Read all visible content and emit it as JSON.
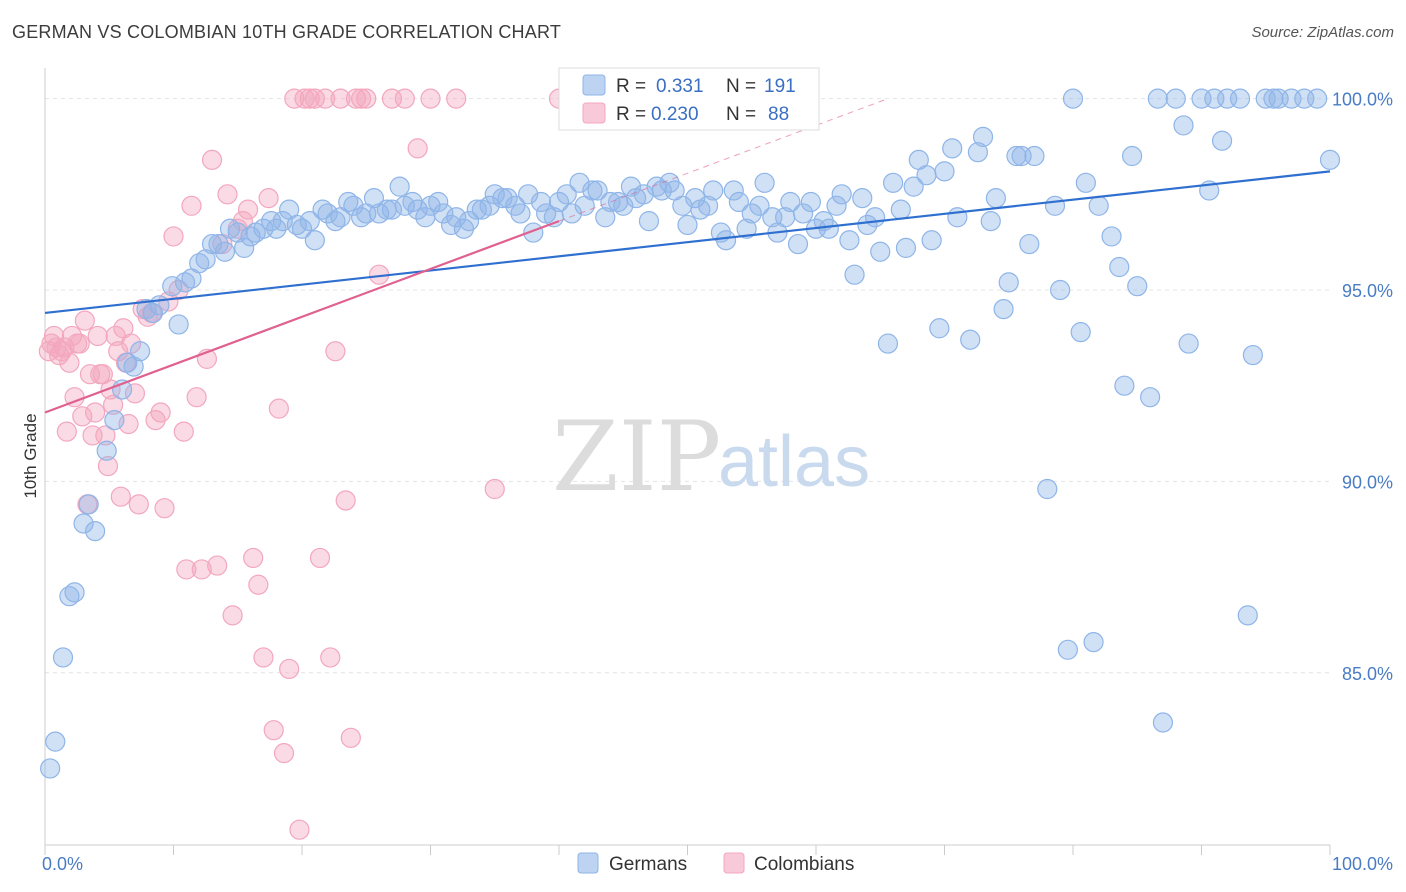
{
  "title": "GERMAN VS COLOMBIAN 10TH GRADE CORRELATION CHART",
  "source": "Source: ZipAtlas.com",
  "watermark": {
    "zip": "ZIP",
    "atlas": "atlas"
  },
  "colors": {
    "german": "#8fb5e8",
    "german_line": "#2f6fd0",
    "colombian": "#f3a7bf",
    "colombian_line": "#e0608f"
  },
  "legend": {
    "german": {
      "r_label": "R =",
      "r_value": "0.331",
      "n_label": "N =",
      "n_value": "191"
    },
    "colombian": {
      "r_label": "R =",
      "r_value": "0.230",
      "n_label": "N =",
      "n_value": "88"
    }
  },
  "bottom_legend": {
    "german": "Germans",
    "colombian": "Colombians"
  },
  "chart_data": {
    "type": "scatter",
    "xlabel": "",
    "ylabel": "10th Grade",
    "xlim": [
      0,
      100
    ],
    "ylim": [
      80.5,
      100.8
    ],
    "x_tick_labels": [
      {
        "value": 0,
        "label": "0.0%"
      },
      {
        "value": 100,
        "label": "100.0%"
      }
    ],
    "y_tick_labels": [
      {
        "value": 85,
        "label": "85.0%"
      },
      {
        "value": 90,
        "label": "90.0%"
      },
      {
        "value": 95,
        "label": "95.0%"
      },
      {
        "value": 100,
        "label": "100.0%"
      }
    ],
    "legend_position": "top-center",
    "series": [
      {
        "name": "Germans",
        "color": "#8fb5e8",
        "trend": {
          "x": [
            0,
            100
          ],
          "y": [
            94.4,
            98.1
          ]
        },
        "points": [
          [
            0.4,
            82.5
          ],
          [
            0.8,
            83.2
          ],
          [
            1.4,
            85.4
          ],
          [
            1.9,
            87.0
          ],
          [
            2.3,
            87.1
          ],
          [
            3.0,
            88.9
          ],
          [
            3.4,
            89.4
          ],
          [
            3.9,
            88.7
          ],
          [
            4.8,
            90.8
          ],
          [
            5.4,
            91.6
          ],
          [
            6.0,
            92.4
          ],
          [
            6.4,
            93.1
          ],
          [
            6.9,
            93.0
          ],
          [
            7.4,
            93.4
          ],
          [
            7.9,
            94.5
          ],
          [
            8.4,
            94.4
          ],
          [
            8.9,
            94.6
          ],
          [
            9.9,
            95.1
          ],
          [
            10.4,
            94.1
          ],
          [
            10.9,
            95.2
          ],
          [
            11.4,
            95.3
          ],
          [
            12.0,
            95.7
          ],
          [
            12.5,
            95.8
          ],
          [
            13.0,
            96.2
          ],
          [
            13.5,
            96.2
          ],
          [
            14.0,
            96.0
          ],
          [
            14.4,
            96.6
          ],
          [
            15.0,
            96.5
          ],
          [
            15.5,
            96.1
          ],
          [
            16.0,
            96.4
          ],
          [
            16.4,
            96.5
          ],
          [
            17.0,
            96.6
          ],
          [
            17.6,
            96.8
          ],
          [
            18.0,
            96.6
          ],
          [
            18.5,
            96.8
          ],
          [
            19.0,
            97.1
          ],
          [
            19.6,
            96.7
          ],
          [
            20.0,
            96.6
          ],
          [
            20.6,
            96.8
          ],
          [
            21.0,
            96.3
          ],
          [
            21.6,
            97.1
          ],
          [
            22.0,
            97.0
          ],
          [
            22.6,
            96.8
          ],
          [
            23.0,
            96.9
          ],
          [
            23.6,
            97.3
          ],
          [
            24.0,
            97.2
          ],
          [
            24.6,
            96.9
          ],
          [
            25.0,
            97.0
          ],
          [
            25.6,
            97.4
          ],
          [
            26.0,
            97.0
          ],
          [
            26.6,
            97.1
          ],
          [
            27.0,
            97.1
          ],
          [
            27.6,
            97.7
          ],
          [
            28.0,
            97.2
          ],
          [
            28.6,
            97.3
          ],
          [
            29.0,
            97.1
          ],
          [
            29.6,
            96.9
          ],
          [
            30.0,
            97.2
          ],
          [
            30.6,
            97.3
          ],
          [
            31.0,
            97.0
          ],
          [
            31.6,
            96.7
          ],
          [
            32.0,
            96.9
          ],
          [
            32.6,
            96.6
          ],
          [
            33.0,
            96.8
          ],
          [
            33.6,
            97.1
          ],
          [
            34.0,
            97.1
          ],
          [
            34.6,
            97.2
          ],
          [
            35.0,
            97.5
          ],
          [
            35.6,
            97.4
          ],
          [
            36.0,
            97.4
          ],
          [
            36.6,
            97.2
          ],
          [
            37.0,
            97.0
          ],
          [
            37.6,
            97.5
          ],
          [
            38.0,
            96.5
          ],
          [
            38.6,
            97.3
          ],
          [
            39.0,
            97.0
          ],
          [
            39.6,
            96.9
          ],
          [
            40.0,
            97.3
          ],
          [
            40.6,
            97.5
          ],
          [
            41.0,
            97.0
          ],
          [
            41.6,
            97.8
          ],
          [
            42.0,
            97.2
          ],
          [
            42.6,
            97.6
          ],
          [
            43.0,
            97.6
          ],
          [
            43.6,
            96.9
          ],
          [
            44.0,
            97.3
          ],
          [
            44.6,
            97.3
          ],
          [
            45.0,
            97.2
          ],
          [
            45.6,
            97.7
          ],
          [
            46.0,
            97.4
          ],
          [
            46.6,
            97.5
          ],
          [
            47.0,
            96.8
          ],
          [
            47.6,
            97.7
          ],
          [
            48.0,
            97.6
          ],
          [
            48.6,
            97.8
          ],
          [
            49.0,
            97.6
          ],
          [
            49.6,
            97.2
          ],
          [
            50.0,
            96.7
          ],
          [
            50.6,
            97.4
          ],
          [
            51.0,
            97.1
          ],
          [
            51.6,
            97.2
          ],
          [
            52.0,
            97.6
          ],
          [
            52.6,
            96.5
          ],
          [
            53.0,
            96.3
          ],
          [
            53.6,
            97.6
          ],
          [
            54.0,
            97.3
          ],
          [
            54.6,
            96.6
          ],
          [
            55.0,
            97.0
          ],
          [
            55.6,
            97.2
          ],
          [
            56.0,
            97.8
          ],
          [
            56.6,
            96.9
          ],
          [
            57.0,
            96.5
          ],
          [
            57.6,
            96.9
          ],
          [
            58.0,
            97.3
          ],
          [
            58.6,
            96.2
          ],
          [
            59.0,
            97.0
          ],
          [
            59.6,
            97.3
          ],
          [
            60.0,
            96.6
          ],
          [
            60.6,
            96.8
          ],
          [
            61.0,
            96.6
          ],
          [
            61.6,
            97.2
          ],
          [
            62.0,
            97.5
          ],
          [
            62.6,
            96.3
          ],
          [
            63.0,
            95.4
          ],
          [
            63.6,
            97.4
          ],
          [
            64.0,
            96.7
          ],
          [
            64.6,
            96.9
          ],
          [
            65.0,
            96.0
          ],
          [
            65.6,
            93.6
          ],
          [
            66.0,
            97.8
          ],
          [
            66.6,
            97.1
          ],
          [
            67.0,
            96.1
          ],
          [
            67.6,
            97.7
          ],
          [
            68.0,
            98.4
          ],
          [
            68.6,
            98.0
          ],
          [
            69.0,
            96.3
          ],
          [
            69.6,
            94.0
          ],
          [
            70.0,
            98.1
          ],
          [
            70.6,
            98.7
          ],
          [
            71.0,
            96.9
          ],
          [
            72.0,
            93.7
          ],
          [
            72.6,
            98.6
          ],
          [
            73.0,
            99.0
          ],
          [
            73.6,
            96.8
          ],
          [
            74.0,
            97.4
          ],
          [
            74.6,
            94.5
          ],
          [
            75.0,
            95.2
          ],
          [
            75.6,
            98.5
          ],
          [
            76.0,
            98.5
          ],
          [
            76.6,
            96.2
          ],
          [
            77.0,
            98.5
          ],
          [
            78.0,
            89.8
          ],
          [
            78.6,
            97.2
          ],
          [
            79.0,
            95.0
          ],
          [
            79.6,
            85.6
          ],
          [
            80.0,
            100.0
          ],
          [
            80.6,
            93.9
          ],
          [
            81.0,
            97.8
          ],
          [
            81.6,
            85.8
          ],
          [
            82.0,
            97.2
          ],
          [
            83.0,
            96.4
          ],
          [
            83.6,
            95.6
          ],
          [
            84.0,
            92.5
          ],
          [
            84.6,
            98.5
          ],
          [
            85.0,
            95.1
          ],
          [
            86.0,
            92.2
          ],
          [
            86.6,
            100.0
          ],
          [
            87.0,
            83.7
          ],
          [
            88.0,
            100.0
          ],
          [
            88.6,
            99.3
          ],
          [
            89.0,
            93.6
          ],
          [
            90.0,
            100.0
          ],
          [
            90.6,
            97.6
          ],
          [
            91.0,
            100.0
          ],
          [
            91.6,
            98.9
          ],
          [
            92.0,
            100.0
          ],
          [
            93.0,
            100.0
          ],
          [
            93.6,
            86.5
          ],
          [
            94.0,
            93.3
          ],
          [
            95.0,
            100.0
          ],
          [
            95.6,
            100.0
          ],
          [
            96.0,
            100.0
          ],
          [
            97.0,
            100.0
          ],
          [
            98.0,
            100.0
          ],
          [
            99.0,
            100.0
          ],
          [
            100.0,
            98.4
          ]
        ]
      },
      {
        "name": "Colombians",
        "color": "#f3a7bf",
        "trend": {
          "x": [
            0,
            40
          ],
          "y": [
            91.8,
            96.8
          ]
        },
        "points": [
          [
            0.3,
            93.4
          ],
          [
            0.5,
            93.6
          ],
          [
            0.7,
            93.8
          ],
          [
            0.9,
            93.5
          ],
          [
            1.1,
            93.3
          ],
          [
            1.3,
            93.4
          ],
          [
            1.5,
            93.5
          ],
          [
            1.7,
            91.3
          ],
          [
            1.9,
            93.1
          ],
          [
            2.1,
            93.8
          ],
          [
            2.3,
            92.2
          ],
          [
            2.5,
            93.6
          ],
          [
            2.7,
            93.6
          ],
          [
            2.9,
            91.7
          ],
          [
            3.1,
            94.2
          ],
          [
            3.3,
            89.4
          ],
          [
            3.5,
            92.8
          ],
          [
            3.7,
            91.2
          ],
          [
            3.9,
            91.8
          ],
          [
            4.1,
            93.8
          ],
          [
            4.3,
            92.8
          ],
          [
            4.5,
            92.8
          ],
          [
            4.7,
            91.2
          ],
          [
            4.9,
            90.4
          ],
          [
            5.1,
            92.4
          ],
          [
            5.3,
            92.0
          ],
          [
            5.5,
            93.8
          ],
          [
            5.7,
            93.4
          ],
          [
            5.9,
            89.6
          ],
          [
            6.1,
            94.0
          ],
          [
            6.3,
            93.1
          ],
          [
            6.5,
            91.5
          ],
          [
            6.7,
            93.6
          ],
          [
            7.0,
            92.3
          ],
          [
            7.3,
            89.4
          ],
          [
            7.6,
            94.5
          ],
          [
            8.0,
            94.3
          ],
          [
            8.3,
            94.4
          ],
          [
            8.6,
            91.6
          ],
          [
            9.0,
            91.8
          ],
          [
            9.3,
            89.3
          ],
          [
            9.6,
            94.7
          ],
          [
            10.0,
            96.4
          ],
          [
            10.4,
            95.0
          ],
          [
            10.8,
            91.3
          ],
          [
            11.0,
            87.7
          ],
          [
            11.4,
            97.2
          ],
          [
            11.8,
            92.2
          ],
          [
            12.2,
            87.7
          ],
          [
            12.6,
            93.2
          ],
          [
            13.0,
            98.4
          ],
          [
            13.4,
            87.8
          ],
          [
            13.8,
            96.2
          ],
          [
            14.2,
            97.5
          ],
          [
            14.6,
            86.5
          ],
          [
            15.0,
            96.6
          ],
          [
            15.4,
            96.8
          ],
          [
            15.8,
            97.1
          ],
          [
            16.2,
            88.0
          ],
          [
            16.6,
            87.3
          ],
          [
            17.0,
            85.4
          ],
          [
            17.4,
            97.4
          ],
          [
            17.8,
            83.5
          ],
          [
            18.2,
            91.9
          ],
          [
            18.6,
            82.9
          ],
          [
            19.0,
            85.1
          ],
          [
            19.4,
            100.0
          ],
          [
            19.8,
            80.9
          ],
          [
            20.2,
            100.0
          ],
          [
            20.6,
            100.0
          ],
          [
            21.0,
            100.0
          ],
          [
            21.4,
            88.0
          ],
          [
            21.8,
            100.0
          ],
          [
            22.2,
            85.4
          ],
          [
            22.6,
            93.4
          ],
          [
            23.0,
            100.0
          ],
          [
            23.4,
            89.5
          ],
          [
            23.8,
            83.3
          ],
          [
            24.2,
            100.0
          ],
          [
            24.6,
            100.0
          ],
          [
            25.0,
            100.0
          ],
          [
            26.0,
            95.4
          ],
          [
            27.0,
            100.0
          ],
          [
            28.0,
            100.0
          ],
          [
            29.0,
            98.7
          ],
          [
            30.0,
            100.0
          ],
          [
            32.0,
            100.0
          ],
          [
            35.0,
            89.8
          ],
          [
            40.0,
            100.0
          ]
        ]
      }
    ]
  }
}
